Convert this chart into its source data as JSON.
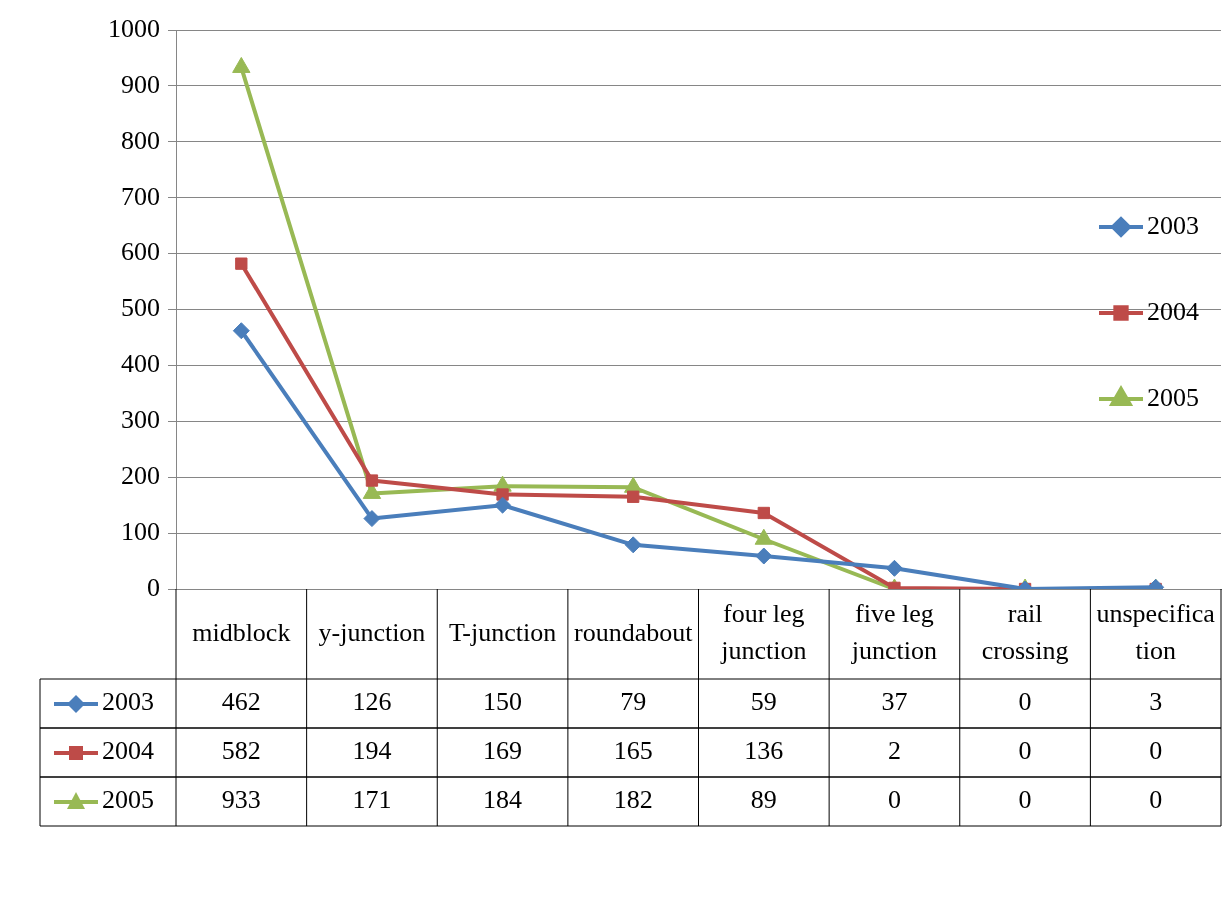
{
  "chart_data": {
    "type": "line",
    "categories": [
      "midblock",
      "y-junction",
      "T-junction",
      "roundabout",
      "four leg junction",
      "five leg junction",
      "rail crossing",
      "unspecification"
    ],
    "series": [
      {
        "name": "2003",
        "color": "#4a7ebb",
        "marker": "diamond",
        "values": [
          462,
          126,
          150,
          79,
          59,
          37,
          0,
          3
        ]
      },
      {
        "name": "2004",
        "color": "#be4b48",
        "marker": "square",
        "values": [
          582,
          194,
          169,
          165,
          136,
          2,
          0,
          0
        ]
      },
      {
        "name": "2005",
        "color": "#98b954",
        "marker": "triangle",
        "values": [
          933,
          171,
          184,
          182,
          89,
          0,
          0,
          0
        ]
      }
    ],
    "ylim": [
      0,
      1000
    ],
    "yticks": [
      0,
      100,
      200,
      300,
      400,
      500,
      600,
      700,
      800,
      900,
      1000
    ],
    "grid": "y",
    "legend": "right",
    "data_labels": true,
    "line_style": "solid"
  }
}
